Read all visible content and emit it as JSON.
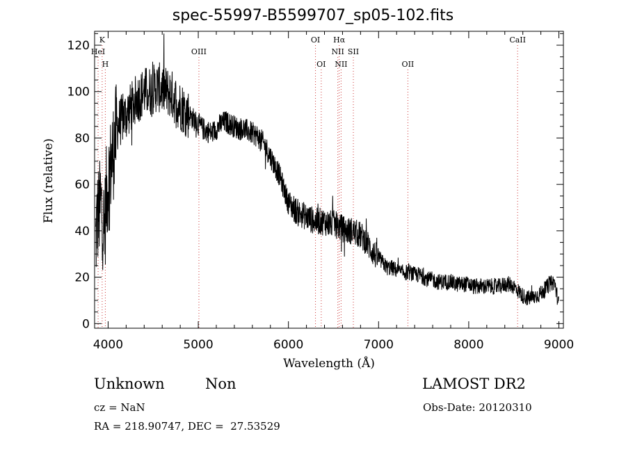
{
  "chart_data": {
    "type": "line",
    "title": "spec-55997-B5599707_sp05-102.fits",
    "xlabel": "Wavelength (Å)",
    "ylabel": "Flux (relative)",
    "xlim": [
      3850,
      9050
    ],
    "ylim": [
      -2,
      126
    ],
    "xticks": [
      4000,
      5000,
      6000,
      7000,
      8000,
      9000
    ],
    "yticks": [
      0,
      20,
      40,
      60,
      80,
      100,
      120
    ],
    "grid": false,
    "legend": "none",
    "line_color": "#000000",
    "marker_color": "#cc3333",
    "spectrum": {
      "x": [
        3860,
        3880,
        3900,
        3920,
        3940,
        3960,
        3980,
        4000,
        4020,
        4040,
        4060,
        4080,
        4100,
        4150,
        4200,
        4250,
        4300,
        4350,
        4400,
        4450,
        4500,
        4550,
        4600,
        4650,
        4700,
        4750,
        4800,
        4850,
        4900,
        4950,
        5000,
        5050,
        5100,
        5150,
        5200,
        5250,
        5300,
        5350,
        5400,
        5450,
        5500,
        5550,
        5600,
        5650,
        5700,
        5750,
        5800,
        5850,
        5900,
        5950,
        6000,
        6050,
        6100,
        6150,
        6200,
        6250,
        6300,
        6350,
        6400,
        6450,
        6500,
        6550,
        6600,
        6650,
        6700,
        6750,
        6800,
        6850,
        6900,
        6950,
        7000,
        7050,
        7100,
        7150,
        7200,
        7250,
        7300,
        7350,
        7400,
        7450,
        7500,
        7550,
        7600,
        7650,
        7700,
        7750,
        7800,
        7850,
        7900,
        7950,
        8000,
        8050,
        8100,
        8150,
        8200,
        8250,
        8300,
        8350,
        8400,
        8450,
        8500,
        8550,
        8600,
        8650,
        8700,
        8750,
        8800,
        8850,
        8900,
        8950,
        9000
      ],
      "y": [
        35,
        45,
        48,
        52,
        45,
        40,
        55,
        60,
        66,
        70,
        75,
        80,
        85,
        88,
        90,
        93,
        96,
        98,
        100,
        100,
        101,
        102,
        101,
        100,
        99,
        96,
        94,
        92,
        90,
        88,
        86,
        84,
        83,
        82,
        84,
        86,
        87,
        86,
        85,
        84,
        84,
        83,
        82,
        81,
        79,
        76,
        72,
        68,
        64,
        58,
        52,
        50,
        48,
        47,
        46,
        45,
        44,
        44,
        44,
        43,
        43,
        42,
        41,
        40,
        40,
        39,
        38,
        36,
        33,
        30,
        28,
        26,
        24,
        24,
        23,
        22,
        22,
        22,
        21,
        21,
        20,
        19,
        19,
        18,
        18,
        18,
        18,
        17,
        17,
        17,
        17,
        16,
        16,
        16,
        16,
        16,
        16,
        16,
        17,
        17,
        16,
        14,
        12,
        11,
        11,
        12,
        13,
        15,
        17,
        18,
        8
      ]
    },
    "markers": [
      {
        "label": "K",
        "x": 3934,
        "row": 1
      },
      {
        "label": "HeI",
        "x": 3889,
        "row": 2
      },
      {
        "label": "H",
        "x": 3969,
        "row": 3
      },
      {
        "label": "OIII",
        "x": 5007,
        "row": 2
      },
      {
        "label": "OI",
        "x": 6300,
        "row": 1
      },
      {
        "label": "OI",
        "x": 6364,
        "row": 3
      },
      {
        "label": "Hα",
        "x": 6563,
        "row": 1
      },
      {
        "label": "NII",
        "x": 6548,
        "row": 2
      },
      {
        "label": "NII",
        "x": 6584,
        "row": 3
      },
      {
        "label": "SII",
        "x": 6720,
        "row": 2
      },
      {
        "label": "OII",
        "x": 7325,
        "row": 3
      },
      {
        "label": "CaII",
        "x": 8542,
        "row": 1
      }
    ]
  },
  "info": {
    "class": "Unknown",
    "subclass": "Non",
    "survey": "LAMOST DR2",
    "cz": "cz = NaN",
    "obs_date": "Obs-Date: 20120310",
    "coords": "RA = 218.90747, DEC =  27.53529"
  }
}
